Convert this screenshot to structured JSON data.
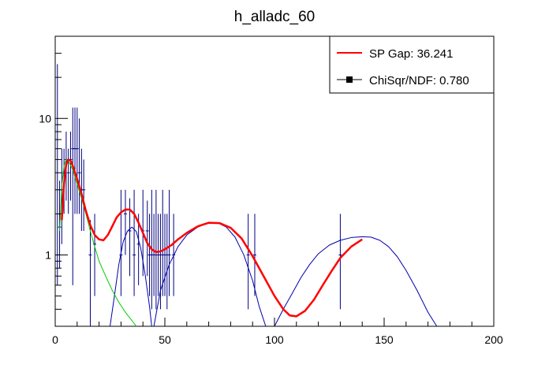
{
  "chart_data": {
    "type": "scatter",
    "title": "h_alladc_60",
    "xlabel": "",
    "ylabel": "",
    "x_range": [
      0,
      200
    ],
    "y_range": [
      0.3,
      40
    ],
    "y_scale": "log",
    "x_ticks": [
      {
        "value": 0,
        "label": "0"
      },
      {
        "value": 50,
        "label": "50"
      },
      {
        "value": 100,
        "label": "100"
      },
      {
        "value": 150,
        "label": "150"
      },
      {
        "value": 200,
        "label": "200"
      }
    ],
    "y_ticks": [
      {
        "value": 1,
        "label": "1"
      },
      {
        "value": 10,
        "label": "10"
      }
    ],
    "grid": false,
    "legend_position": "top-right",
    "legend": [
      {
        "label": "SP Gap: 36.241",
        "style": "line",
        "color": "#ff0000"
      },
      {
        "label": "ChiSqr/NDF: 0.780",
        "style": "marker-line",
        "color": "#000000"
      }
    ],
    "colors": {
      "data": "#000080",
      "total_fit": "#ff0000",
      "component_fit": "#0000aa",
      "pedestal_fit": "#00cc00"
    },
    "data_points": [
      {
        "x": 1,
        "y": 1.0,
        "ylo": 0.6,
        "yhi": 25
      },
      {
        "x": 2,
        "y": 1.6,
        "ylo": 0.8,
        "yhi": 3.5
      },
      {
        "x": 3,
        "y": 3.0,
        "ylo": 1.2,
        "yhi": 6.0
      },
      {
        "x": 4,
        "y": 4.0,
        "ylo": 2.0,
        "yhi": 6.0
      },
      {
        "x": 5,
        "y": 5.0,
        "ylo": 2.5,
        "yhi": 8.0
      },
      {
        "x": 6,
        "y": 4.0,
        "ylo": 2.0,
        "yhi": 6.0
      },
      {
        "x": 7,
        "y": 5.0,
        "ylo": 2.5,
        "yhi": 8.0
      },
      {
        "x": 8,
        "y": 6.0,
        "ylo": 0.6,
        "yhi": 12
      },
      {
        "x": 9,
        "y": 6.0,
        "ylo": 2.0,
        "yhi": 12
      },
      {
        "x": 10,
        "y": 6.0,
        "ylo": 2.0,
        "yhi": 12
      },
      {
        "x": 11,
        "y": 4.0,
        "ylo": 2.0,
        "yhi": 10
      },
      {
        "x": 12,
        "y": 3.0,
        "ylo": 1.5,
        "yhi": 6.0
      },
      {
        "x": 13,
        "y": 3.0,
        "ylo": 1.5,
        "yhi": 5.0
      },
      {
        "x": 16,
        "y": 1.0,
        "ylo": 0.3,
        "yhi": 1.8
      },
      {
        "x": 18,
        "y": 1.2,
        "ylo": 0.5,
        "yhi": 2.0
      },
      {
        "x": 30,
        "y": 1.0,
        "ylo": 0.5,
        "yhi": 3.0
      },
      {
        "x": 32,
        "y": 2.0,
        "ylo": 1.0,
        "yhi": 3.0
      },
      {
        "x": 34,
        "y": 1.5,
        "ylo": 0.7,
        "yhi": 2.6
      },
      {
        "x": 36,
        "y": 1.0,
        "ylo": 0.5,
        "yhi": 3.0
      },
      {
        "x": 38,
        "y": 1.2,
        "ylo": 0.6,
        "yhi": 2.0
      },
      {
        "x": 40,
        "y": 1.5,
        "ylo": 0.7,
        "yhi": 3.0
      },
      {
        "x": 42,
        "y": 1.5,
        "ylo": 0.7,
        "yhi": 2.5
      },
      {
        "x": 43,
        "y": 1.0,
        "ylo": 0.5,
        "yhi": 2.0
      },
      {
        "x": 44,
        "y": 1.0,
        "ylo": 0.4,
        "yhi": 3.0
      },
      {
        "x": 45,
        "y": 1.0,
        "ylo": 0.5,
        "yhi": 2.0
      },
      {
        "x": 46,
        "y": 1.0,
        "ylo": 0.4,
        "yhi": 3.0
      },
      {
        "x": 47,
        "y": 1.0,
        "ylo": 0.5,
        "yhi": 2.0
      },
      {
        "x": 48,
        "y": 1.0,
        "ylo": 0.4,
        "yhi": 2.0
      },
      {
        "x": 49,
        "y": 1.0,
        "ylo": 0.5,
        "yhi": 3.0
      },
      {
        "x": 50,
        "y": 1.0,
        "ylo": 0.5,
        "yhi": 2.0
      },
      {
        "x": 51,
        "y": 1.0,
        "ylo": 0.4,
        "yhi": 2.0
      },
      {
        "x": 52,
        "y": 1.0,
        "ylo": 0.5,
        "yhi": 3.0
      },
      {
        "x": 54,
        "y": 1.0,
        "ylo": 0.5,
        "yhi": 2.0
      },
      {
        "x": 88,
        "y": 1.0,
        "ylo": 0.4,
        "yhi": 2.0
      },
      {
        "x": 91,
        "y": 1.0,
        "ylo": 0.5,
        "yhi": 2.0
      },
      {
        "x": 130,
        "y": 1.0,
        "ylo": 0.4,
        "yhi": 2.0
      }
    ],
    "total_fit": [
      [
        3,
        1.8
      ],
      [
        4,
        3.3
      ],
      [
        5,
        4.6
      ],
      [
        6,
        5.0
      ],
      [
        7,
        4.9
      ],
      [
        8,
        4.5
      ],
      [
        10,
        3.6
      ],
      [
        12,
        2.8
      ],
      [
        14,
        2.1
      ],
      [
        16,
        1.65
      ],
      [
        18,
        1.4
      ],
      [
        20,
        1.3
      ],
      [
        22,
        1.28
      ],
      [
        24,
        1.4
      ],
      [
        26,
        1.62
      ],
      [
        28,
        1.88
      ],
      [
        30,
        2.05
      ],
      [
        32,
        2.15
      ],
      [
        34,
        2.15
      ],
      [
        36,
        2.0
      ],
      [
        38,
        1.72
      ],
      [
        40,
        1.45
      ],
      [
        42,
        1.22
      ],
      [
        44,
        1.1
      ],
      [
        46,
        1.05
      ],
      [
        48,
        1.06
      ],
      [
        50,
        1.1
      ],
      [
        53,
        1.18
      ],
      [
        56,
        1.3
      ],
      [
        60,
        1.45
      ],
      [
        65,
        1.62
      ],
      [
        70,
        1.72
      ],
      [
        75,
        1.71
      ],
      [
        80,
        1.58
      ],
      [
        85,
        1.32
      ],
      [
        90,
        0.98
      ],
      [
        95,
        0.7
      ],
      [
        100,
        0.5
      ],
      [
        104,
        0.4
      ],
      [
        107,
        0.36
      ],
      [
        110,
        0.355
      ],
      [
        114,
        0.39
      ],
      [
        118,
        0.47
      ],
      [
        122,
        0.6
      ],
      [
        126,
        0.76
      ],
      [
        130,
        0.95
      ],
      [
        135,
        1.15
      ],
      [
        140,
        1.3
      ]
    ],
    "pedestal_fit": [
      [
        2,
        1.5
      ],
      [
        3,
        3.2
      ],
      [
        4,
        4.5
      ],
      [
        5,
        5.0
      ],
      [
        6,
        4.9
      ],
      [
        8,
        4.2
      ],
      [
        10,
        3.3
      ],
      [
        12,
        2.6
      ],
      [
        14,
        2.0
      ],
      [
        16,
        1.5
      ],
      [
        18,
        1.15
      ],
      [
        20,
        0.9
      ],
      [
        23,
        0.7
      ],
      [
        26,
        0.55
      ],
      [
        29,
        0.45
      ],
      [
        32,
        0.38
      ],
      [
        35,
        0.33
      ],
      [
        37,
        0.3
      ]
    ],
    "component_fits": [
      [
        [
          25,
          0.3
        ],
        [
          27,
          0.5
        ],
        [
          29,
          0.85
        ],
        [
          31,
          1.25
        ],
        [
          33,
          1.5
        ],
        [
          35,
          1.6
        ],
        [
          37,
          1.48
        ],
        [
          39,
          1.12
        ],
        [
          41,
          0.72
        ],
        [
          43,
          0.42
        ],
        [
          44,
          0.3
        ]
      ],
      [
        [
          45,
          0.3
        ],
        [
          48,
          0.55
        ],
        [
          52,
          0.85
        ],
        [
          56,
          1.15
        ],
        [
          60,
          1.4
        ],
        [
          65,
          1.6
        ],
        [
          70,
          1.72
        ],
        [
          74,
          1.72
        ],
        [
          78,
          1.6
        ],
        [
          82,
          1.35
        ],
        [
          86,
          1.0
        ],
        [
          90,
          0.65
        ],
        [
          93,
          0.42
        ],
        [
          96,
          0.3
        ]
      ],
      [
        [
          100,
          0.3
        ],
        [
          104,
          0.4
        ],
        [
          108,
          0.52
        ],
        [
          112,
          0.68
        ],
        [
          116,
          0.85
        ],
        [
          120,
          1.02
        ],
        [
          125,
          1.18
        ],
        [
          130,
          1.28
        ],
        [
          135,
          1.34
        ],
        [
          140,
          1.36
        ],
        [
          144,
          1.35
        ],
        [
          148,
          1.28
        ],
        [
          152,
          1.15
        ],
        [
          156,
          0.97
        ],
        [
          160,
          0.77
        ],
        [
          165,
          0.55
        ],
        [
          170,
          0.38
        ],
        [
          174,
          0.3
        ]
      ]
    ]
  }
}
